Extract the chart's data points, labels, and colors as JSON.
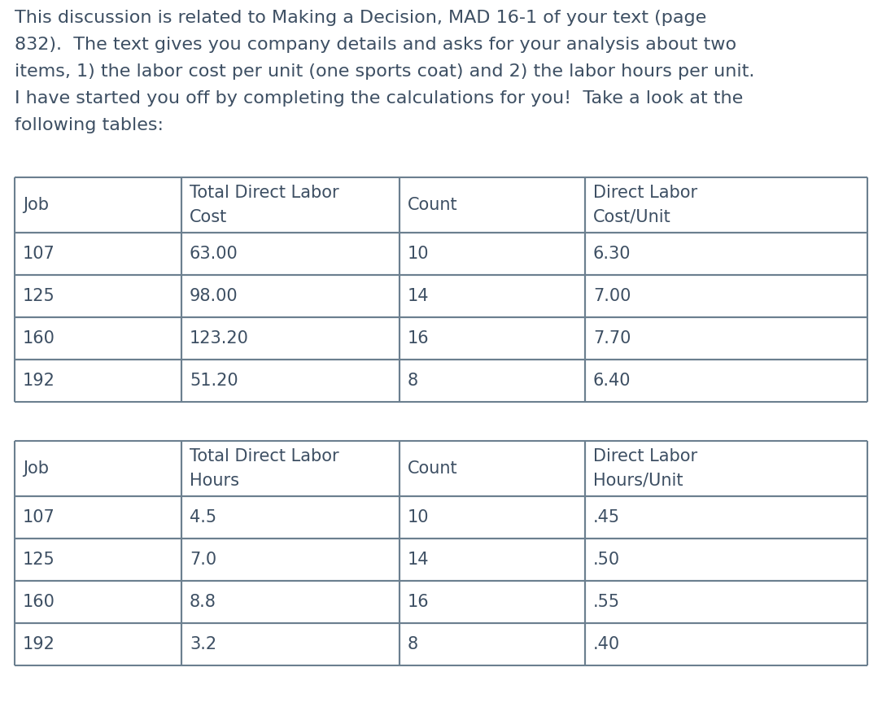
{
  "intro_text_lines": [
    "This discussion is related to Making a Decision, MAD 16-1 of your text (page",
    "832).  The text gives you company details and asks for your analysis about two",
    "items, 1) the labor cost per unit (one sports coat) and 2) the labor hours per unit.",
    "I have started you off by completing the calculations for you!  Take a look at the",
    "following tables:"
  ],
  "table1": {
    "col_labels": [
      "Job",
      "Total Direct Labor\nCost",
      "Count",
      "Direct Labor\nCost/Unit"
    ],
    "rows": [
      [
        "107",
        "63.00",
        "10",
        "6.30"
      ],
      [
        "125",
        "98.00",
        "14",
        "7.00"
      ],
      [
        "160",
        "123.20",
        "16",
        "7.70"
      ],
      [
        "192",
        "51.20",
        "8",
        "6.40"
      ]
    ]
  },
  "table2": {
    "col_labels": [
      "Job",
      "Total Direct Labor\nHours",
      "Count",
      "Direct Labor\nHours/Unit"
    ],
    "rows": [
      [
        "107",
        "4.5",
        "10",
        ".45"
      ],
      [
        "125",
        "7.0",
        "14",
        ".50"
      ],
      [
        "160",
        "8.8",
        "16",
        ".55"
      ],
      [
        "192",
        "3.2",
        "8",
        ".40"
      ]
    ]
  },
  "text_color": "#3d4f63",
  "border_color": "#6b7f8f",
  "bg_color": "#ffffff",
  "font_size_text": 16,
  "font_size_table": 15
}
